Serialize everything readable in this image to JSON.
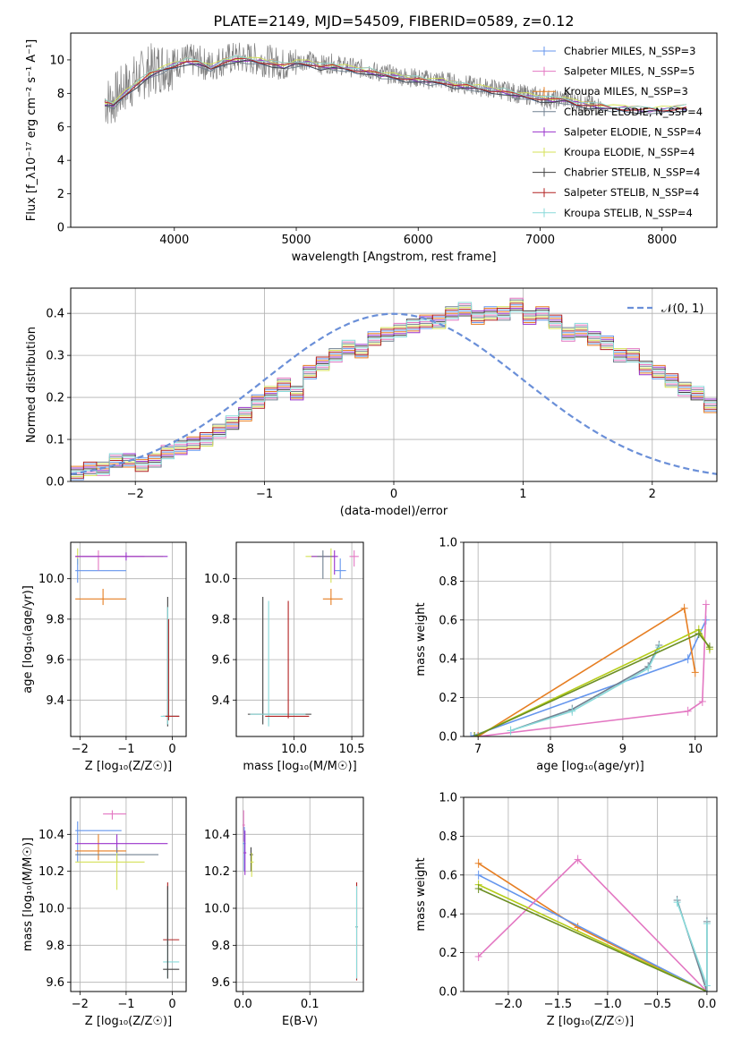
{
  "figure": {
    "title": "PLATE=2149, MJD=54509, FIBERID=0589, z=0.12"
  },
  "chart_data": [
    {
      "id": "spectrum",
      "type": "line",
      "xlabel": "wavelength [Angstrom, rest frame]",
      "ylabel": "Flux [f_λ10⁻¹⁷ erg cm⁻² s⁻¹ A⁻¹]",
      "xlim": [
        3150,
        8450
      ],
      "ylim": [
        0,
        11.6
      ],
      "xticks": [
        4000,
        5000,
        6000,
        7000,
        8000
      ],
      "yticks": [
        0,
        2,
        4,
        6,
        8,
        10
      ],
      "grid": false,
      "legend_position": "top-right",
      "data_series": {
        "name": "data",
        "color": "#808080",
        "x": [
          3430,
          3500,
          3600,
          3700,
          3800,
          3900,
          4000,
          4100,
          4200,
          4300,
          4400,
          4500,
          4600,
          4700,
          4800,
          4900,
          5000,
          5100,
          5200,
          5300,
          5400,
          5500,
          5600,
          5700,
          5800,
          5900,
          6000,
          6100,
          6200,
          6300,
          6400,
          6500,
          6600,
          6700,
          6800,
          6900,
          7000,
          7100,
          7200,
          7300,
          7400,
          7500
        ],
        "y": [
          7.5,
          7.6,
          8.4,
          8.9,
          9.4,
          9.6,
          9.8,
          10.0,
          9.9,
          9.6,
          10.0,
          10.1,
          10.1,
          10.0,
          9.9,
          9.7,
          9.9,
          10.0,
          9.7,
          9.8,
          9.6,
          9.5,
          9.4,
          9.2,
          9.1,
          9.0,
          8.9,
          8.8,
          8.8,
          8.6,
          8.5,
          8.4,
          8.3,
          8.2,
          8.0,
          7.9,
          7.8,
          7.6,
          7.7,
          7.5,
          7.3,
          7.2
        ]
      },
      "model_x": [
        3430,
        3500,
        3600,
        3700,
        3800,
        3900,
        4000,
        4100,
        4200,
        4300,
        4400,
        4500,
        4600,
        4700,
        4800,
        4900,
        5000,
        5100,
        5200,
        5300,
        5400,
        5500,
        5600,
        5700,
        5800,
        5900,
        6000,
        6100,
        6200,
        6300,
        6400,
        6500,
        6600,
        6700,
        6800,
        6900,
        7000,
        7100,
        7200,
        7300,
        7400,
        7500,
        7600,
        7700,
        7800,
        7900,
        8000,
        8100,
        8200
      ],
      "model_y": [
        7.4,
        7.3,
        8.0,
        8.6,
        9.1,
        9.4,
        9.7,
        9.9,
        9.8,
        9.5,
        9.9,
        10.0,
        10.0,
        9.9,
        9.8,
        9.6,
        9.8,
        9.8,
        9.6,
        9.6,
        9.5,
        9.4,
        9.3,
        9.1,
        9.0,
        8.9,
        8.8,
        8.7,
        8.7,
        8.5,
        8.4,
        8.3,
        8.2,
        8.1,
        7.9,
        7.8,
        7.7,
        7.6,
        7.6,
        7.4,
        7.3,
        7.2,
        7.1,
        7.1,
        7.0,
        7.0,
        7.0,
        7.1,
        7.1
      ],
      "legend_entries": [
        {
          "name": "Chabrier MILES, N_SSP=3",
          "color": "#6495ed"
        },
        {
          "name": "Salpeter MILES, N_SSP=5",
          "color": "#e377c2"
        },
        {
          "name": "Kroupa MILES, N_SSP=3",
          "color": "#e67e22"
        },
        {
          "name": "Chabrier ELODIE, N_SSP=4",
          "color": "#708090"
        },
        {
          "name": "Salpeter ELODIE, N_SSP=4",
          "color": "#9932cc"
        },
        {
          "name": "Kroupa ELODIE, N_SSP=4",
          "color": "#d4e157"
        },
        {
          "name": "Chabrier STELIB, N_SSP=4",
          "color": "#404040"
        },
        {
          "name": "Salpeter STELIB, N_SSP=4",
          "color": "#b22222"
        },
        {
          "name": "Kroupa STELIB, N_SSP=4",
          "color": "#88dada"
        }
      ]
    },
    {
      "id": "residuals",
      "type": "line",
      "xlabel": "(data-model)/error",
      "ylabel": "Normed distribution",
      "xlim": [
        -2.5,
        2.5
      ],
      "ylim": [
        0,
        0.46
      ],
      "xticks": [
        -2,
        -1,
        0,
        1,
        2
      ],
      "yticks": [
        0.0,
        0.1,
        0.2,
        0.3,
        0.4
      ],
      "grid": true,
      "legend_position": "top-right",
      "legend_entries": [
        {
          "name": "𝒩(0, 1)",
          "color": "#6a8fd8"
        }
      ],
      "bin_width": 0.1,
      "bin_start": -2.5,
      "histogram_values": [
        0.02,
        0.03,
        0.03,
        0.05,
        0.05,
        0.04,
        0.05,
        0.07,
        0.08,
        0.09,
        0.1,
        0.12,
        0.14,
        0.16,
        0.19,
        0.21,
        0.23,
        0.21,
        0.26,
        0.28,
        0.3,
        0.32,
        0.31,
        0.34,
        0.35,
        0.36,
        0.37,
        0.38,
        0.38,
        0.4,
        0.41,
        0.39,
        0.4,
        0.4,
        0.42,
        0.39,
        0.4,
        0.38,
        0.35,
        0.36,
        0.34,
        0.33,
        0.3,
        0.3,
        0.27,
        0.26,
        0.24,
        0.22,
        0.21,
        0.18
      ]
    },
    {
      "id": "age-vs-Z",
      "type": "scatter",
      "xlabel": "Z [log₁₀(Z/Z☉)]",
      "ylabel": "age  [log₁₀(age/yr)]",
      "xlim": [
        -2.2,
        0.3
      ],
      "ylim": [
        9.22,
        10.18
      ],
      "xticks": [
        -2,
        -1,
        0
      ],
      "yticks": [
        9.4,
        9.6,
        9.8,
        10.0
      ],
      "grid": true
    },
    {
      "id": "age-vs-mass",
      "type": "scatter",
      "xlabel": "mass [log₁₀(M/M☉)]",
      "ylabel": "",
      "xlim": [
        9.5,
        10.6
      ],
      "ylim": [
        9.22,
        10.18
      ],
      "xticks": [
        10.0,
        10.5
      ],
      "yticks": [
        9.4,
        9.6,
        9.8,
        10.0
      ],
      "grid": true
    },
    {
      "id": "weight-vs-age",
      "type": "line",
      "xlabel": "age  [log₁₀(age/yr)]",
      "ylabel": "mass weight",
      "xlim": [
        6.8,
        10.3
      ],
      "ylim": [
        0,
        1
      ],
      "xticks": [
        7,
        8,
        9,
        10
      ],
      "yticks": [
        0.0,
        0.2,
        0.4,
        0.6,
        0.8,
        1.0
      ],
      "grid": true,
      "series": [
        {
          "name": "Chabrier MILES",
          "color": "#6495ed",
          "x": [
            6.9,
            9.9,
            10.15
          ],
          "y": [
            0.0,
            0.4,
            0.6
          ]
        },
        {
          "name": "Salpeter MILES",
          "color": "#e377c2",
          "x": [
            7.0,
            9.9,
            10.1,
            10.15
          ],
          "y": [
            0.0,
            0.13,
            0.18,
            0.68
          ]
        },
        {
          "name": "Kroupa MILES",
          "color": "#e67e22",
          "x": [
            7.0,
            9.85,
            10.0
          ],
          "y": [
            0.0,
            0.66,
            0.33
          ]
        },
        {
          "name": "Chabrier STELIB",
          "color": "#708090",
          "x": [
            7.45,
            8.3,
            9.35,
            9.5
          ],
          "y": [
            0.03,
            0.14,
            0.36,
            0.47
          ]
        },
        {
          "name": "Kroupa STELIB",
          "color": "#88dada",
          "x": [
            7.45,
            8.3,
            9.35,
            9.5
          ],
          "y": [
            0.03,
            0.13,
            0.35,
            0.46
          ]
        },
        {
          "name": "Kroupa ELODIE",
          "color": "#b5cc18",
          "x": [
            6.95,
            10.05,
            10.2
          ],
          "y": [
            0.0,
            0.55,
            0.45
          ]
        },
        {
          "name": "Salpeter STELIB",
          "color": "#6b8e23",
          "x": [
            6.95,
            10.05,
            10.2
          ],
          "y": [
            0.0,
            0.53,
            0.46
          ]
        }
      ]
    },
    {
      "id": "mass-vs-Z",
      "type": "scatter",
      "xlabel": "Z [log₁₀(Z/Z☉)]",
      "ylabel": "mass [log₁₀(M/M☉)]",
      "xlim": [
        -2.2,
        0.3
      ],
      "ylim": [
        9.55,
        10.6
      ],
      "xticks": [
        -2,
        -1,
        0
      ],
      "yticks": [
        9.6,
        9.8,
        10.0,
        10.2,
        10.4
      ],
      "grid": true
    },
    {
      "id": "mass-vs-EBV",
      "type": "scatter",
      "xlabel": "E(B-V)",
      "ylabel": "",
      "xlim": [
        -0.01,
        0.18
      ],
      "ylim": [
        9.55,
        10.6
      ],
      "xticks": [
        0.0,
        0.1
      ],
      "yticks": [
        9.6,
        9.8,
        10.0,
        10.2,
        10.4
      ],
      "grid": true
    },
    {
      "id": "weight-vs-Z",
      "type": "line",
      "xlabel": "Z [log₁₀(Z/Z☉)]",
      "ylabel": "mass weight",
      "xlim": [
        -2.45,
        0.1
      ],
      "ylim": [
        0,
        1
      ],
      "xticks": [
        -2.0,
        -1.5,
        -1.0,
        -0.5,
        0.0
      ],
      "yticks": [
        0.0,
        0.2,
        0.4,
        0.6,
        0.8,
        1.0
      ],
      "grid": true,
      "series": [
        {
          "name": "Kroupa MILES",
          "color": "#e67e22",
          "x": [
            -2.3,
            -1.3,
            0.0
          ],
          "y": [
            0.66,
            0.33,
            0.0
          ]
        },
        {
          "name": "Chabrier MILES",
          "color": "#6495ed",
          "x": [
            -2.3,
            0.0
          ],
          "y": [
            0.6,
            0.0
          ]
        },
        {
          "name": "Salpeter MILES",
          "color": "#e377c2",
          "x": [
            -2.3,
            -1.3,
            0.0
          ],
          "y": [
            0.18,
            0.68,
            0.0
          ]
        },
        {
          "name": "Kroupa ELODIE",
          "color": "#b5cc18",
          "x": [
            -2.3,
            0.0
          ],
          "y": [
            0.55,
            0.0
          ]
        },
        {
          "name": "Salpeter STELIB",
          "color": "#6b8e23",
          "x": [
            -2.3,
            0.0
          ],
          "y": [
            0.53,
            0.0
          ]
        },
        {
          "name": "Chabrier STELIB",
          "color": "#708090",
          "x": [
            -0.3,
            0.0,
            0.0
          ],
          "y": [
            0.47,
            0.0,
            0.36
          ]
        },
        {
          "name": "Kroupa STELIB",
          "color": "#88dada",
          "x": [
            -0.3,
            0.0,
            0.0
          ],
          "y": [
            0.46,
            0.03,
            0.35
          ]
        }
      ]
    }
  ]
}
